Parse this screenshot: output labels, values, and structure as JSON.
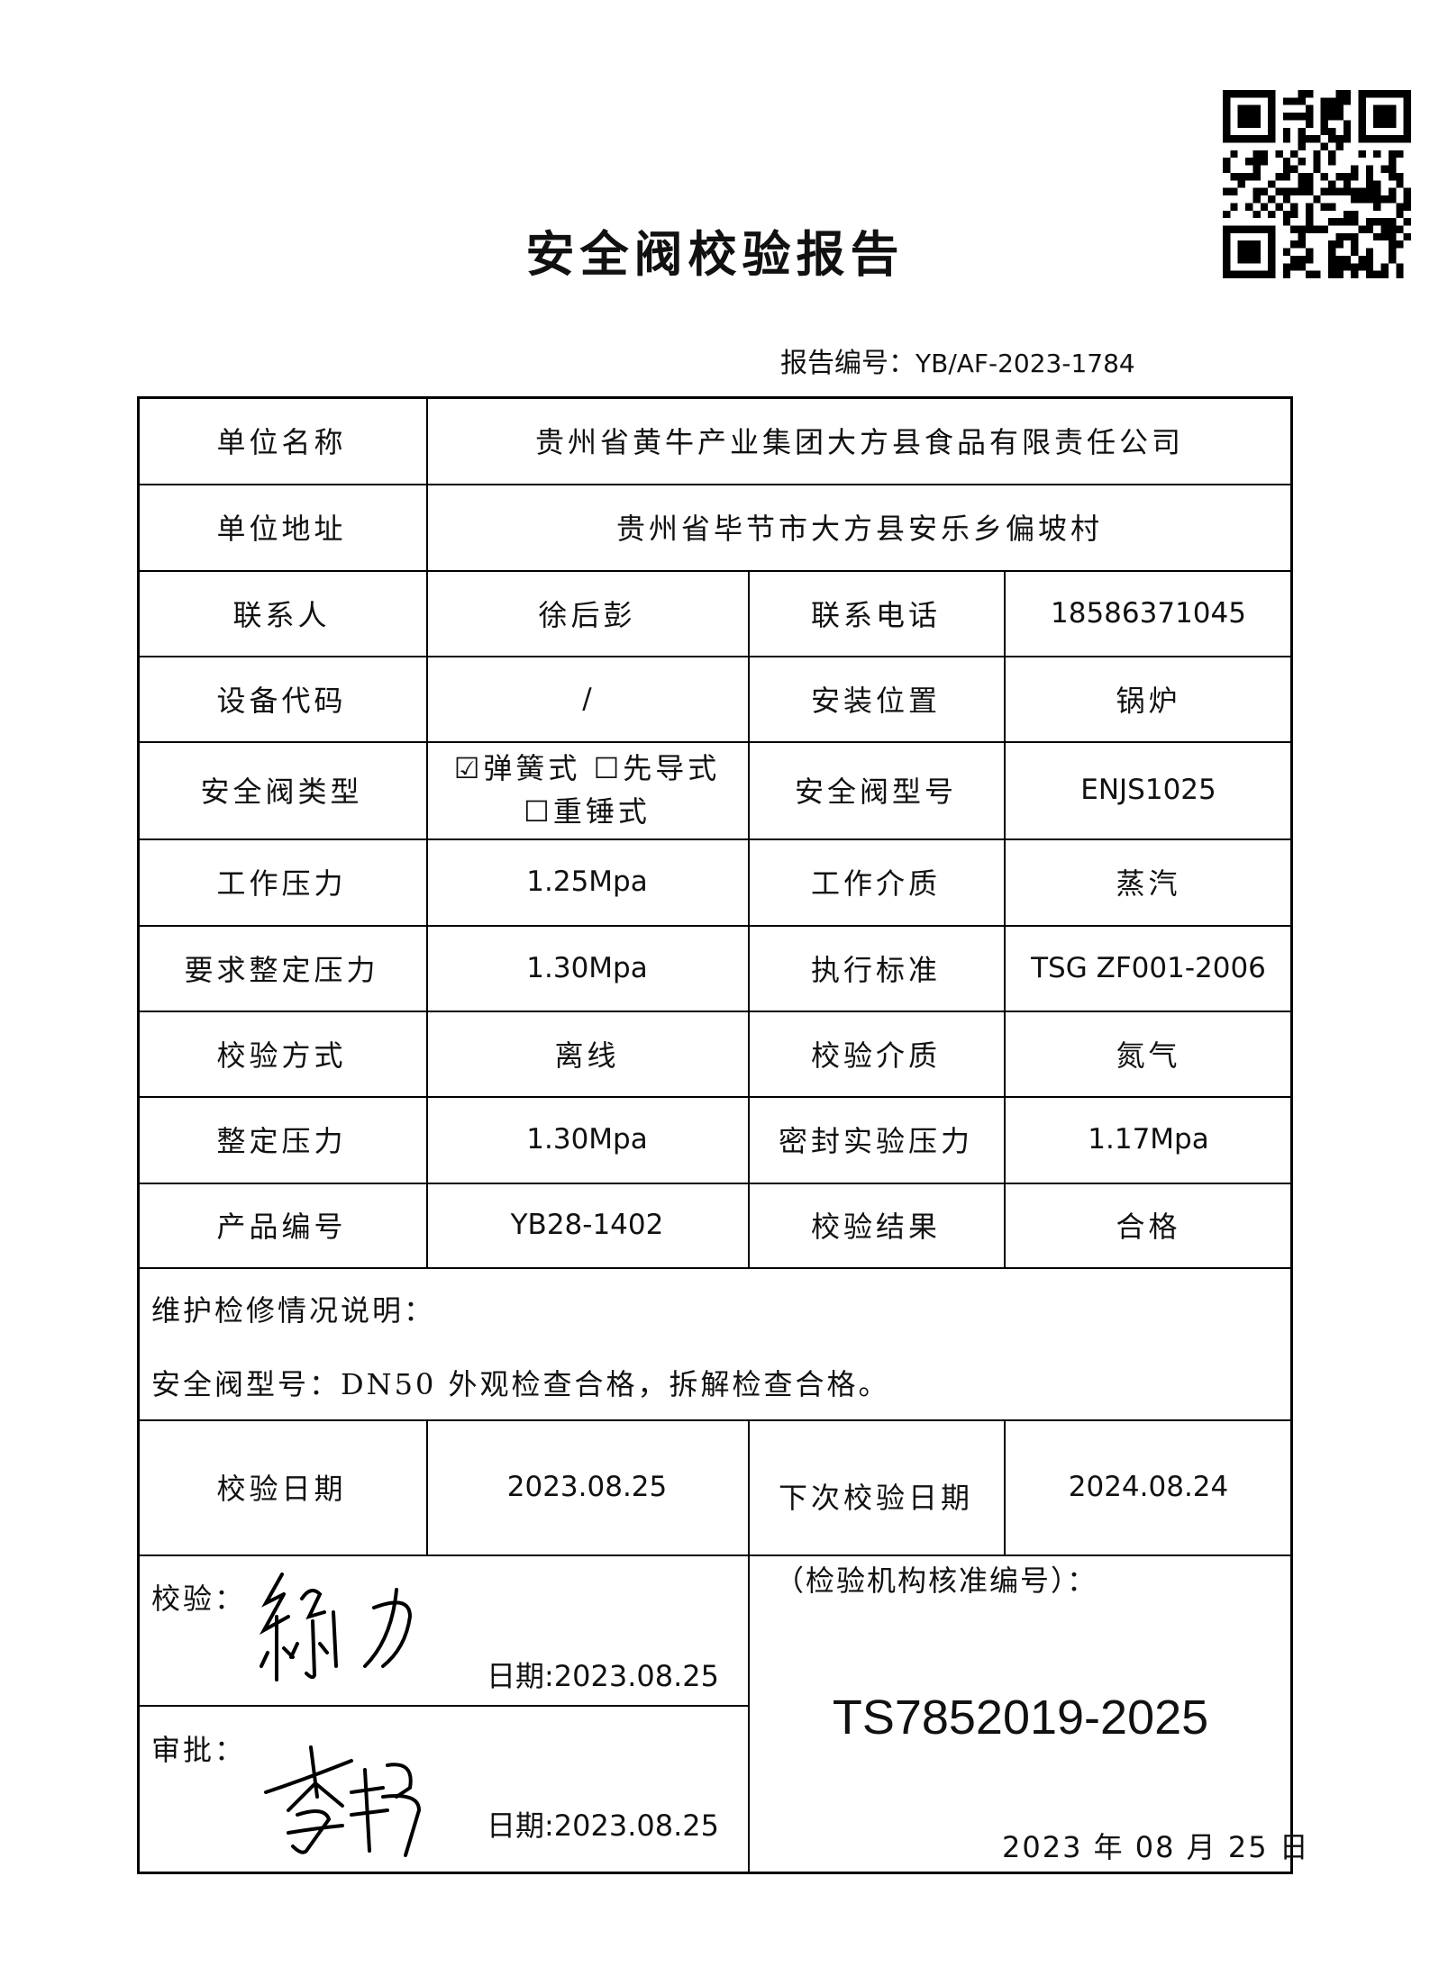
{
  "title": "安全阀校验报告",
  "report_number": {
    "label": "报告编号：",
    "value": "YB/AF-2023-1784"
  },
  "qr_code": "qr-code",
  "rows": [
    {
      "label": "单位名称",
      "value": "贵州省黄牛产业集团大方县食品有限责任公司"
    },
    {
      "label": "单位地址",
      "value": "贵州省毕节市大方县安乐乡偏坡村"
    },
    {
      "label": "联系人",
      "value": "徐后彭",
      "label2": "联系电话",
      "value2": "18586371045"
    },
    {
      "label": "设备代码",
      "value": "/",
      "label2": "安装位置",
      "value2": "锅炉"
    },
    {
      "label": "安全阀类型",
      "options": [
        {
          "label": "弹簧式",
          "checked": true
        },
        {
          "label": "先导式",
          "checked": false
        },
        {
          "label": "重锤式",
          "checked": false
        }
      ],
      "label2": "安全阀型号",
      "value2": "ENJS1025"
    },
    {
      "label": "工作压力",
      "value": "1.25Mpa",
      "label2": "工作介质",
      "value2": "蒸汽"
    },
    {
      "label": "要求整定压力",
      "value": "1.30Mpa",
      "label2": "执行标准",
      "value2": "TSG ZF001-2006"
    },
    {
      "label": "校验方式",
      "value": "离线",
      "label2": "校验介质",
      "value2": "氮气"
    },
    {
      "label": "整定压力",
      "value": "1.30Mpa",
      "label2": "密封实验压力",
      "value2": "1.17Mpa"
    },
    {
      "label": "产品编号",
      "value": "YB28-1402",
      "label2": "校验结果",
      "value2": "合格"
    }
  ],
  "maintenance": {
    "label": "维护检修情况说明：",
    "text": "安全阀型号：DN50 外观检查合格，拆解检查合格。"
  },
  "dates": {
    "label": "校验日期",
    "value": "2023.08.25",
    "label2": "下次校验日期",
    "value2": "2024.08.24"
  },
  "verify": {
    "label": "校验：",
    "signature": "徐力",
    "date": "日期:2023.08.25"
  },
  "approve": {
    "label": "审批：",
    "signature": "李伟",
    "date": "日期:2023.08.25"
  },
  "institution": {
    "label": "（检验机构核准编号）：",
    "code": "TS7852019-2025",
    "date": "2023 年 08 月 25 日"
  }
}
